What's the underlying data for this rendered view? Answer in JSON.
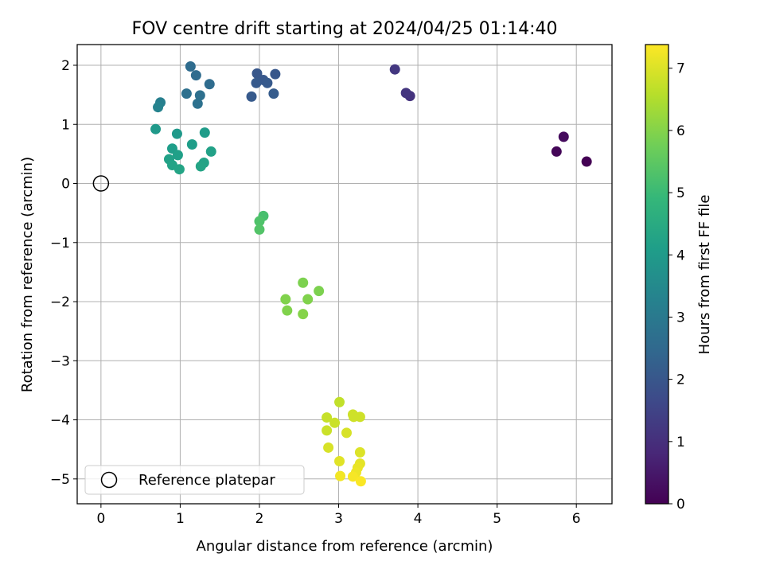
{
  "chart_data": {
    "type": "scatter",
    "title": "FOV centre drift starting at 2024/04/25 01:14:40",
    "xlabel": "Angular distance from reference (arcmin)",
    "ylabel": "Rotation from reference (arcmin)",
    "xlim": [
      -0.3,
      6.45
    ],
    "ylim": [
      -5.42,
      2.35
    ],
    "xticks": [
      0,
      1,
      2,
      3,
      4,
      5,
      6
    ],
    "yticks": [
      -5,
      -4,
      -3,
      -2,
      -1,
      0,
      1,
      2
    ],
    "xtick_labels": [
      "0",
      "1",
      "2",
      "3",
      "4",
      "5",
      "6"
    ],
    "ytick_labels": [
      "−5",
      "−4",
      "−3",
      "−2",
      "−1",
      "0",
      "1",
      "2"
    ],
    "grid": true,
    "legend": {
      "placement": "lower-left",
      "entries": [
        {
          "label": "Reference platepar",
          "marker": "open-circle"
        }
      ]
    },
    "reference_point": {
      "x": 0,
      "y": 0
    },
    "colorbar": {
      "label": "Hours from first FF file",
      "range": [
        0,
        7.38
      ],
      "ticks": [
        0,
        1,
        2,
        3,
        4,
        5,
        6,
        7
      ],
      "tick_labels": [
        "0",
        "1",
        "2",
        "3",
        "4",
        "5",
        "6",
        "7"
      ],
      "colormap": "viridis",
      "colormap_stops": [
        "#440154",
        "#482878",
        "#3e4989",
        "#31688e",
        "#26828e",
        "#1f9e89",
        "#35b779",
        "#6ece58",
        "#b5de2b",
        "#fde725"
      ]
    },
    "points": [
      {
        "x": 6.13,
        "y": 0.37,
        "hours": 0.0
      },
      {
        "x": 5.75,
        "y": 0.54,
        "hours": 0.1
      },
      {
        "x": 5.84,
        "y": 0.79,
        "hours": 0.2
      },
      {
        "x": 3.9,
        "y": 1.48,
        "hours": 1.1
      },
      {
        "x": 3.85,
        "y": 1.53,
        "hours": 1.15
      },
      {
        "x": 3.71,
        "y": 1.93,
        "hours": 1.2
      },
      {
        "x": 1.97,
        "y": 1.86,
        "hours": 2.0
      },
      {
        "x": 2.2,
        "y": 1.85,
        "hours": 2.0
      },
      {
        "x": 2.05,
        "y": 1.75,
        "hours": 2.05
      },
      {
        "x": 1.96,
        "y": 1.7,
        "hours": 2.1
      },
      {
        "x": 2.1,
        "y": 1.7,
        "hours": 2.1
      },
      {
        "x": 1.9,
        "y": 1.47,
        "hours": 2.1
      },
      {
        "x": 2.18,
        "y": 1.52,
        "hours": 2.15
      },
      {
        "x": 1.13,
        "y": 1.98,
        "hours": 2.6
      },
      {
        "x": 1.2,
        "y": 1.83,
        "hours": 2.6
      },
      {
        "x": 1.37,
        "y": 1.68,
        "hours": 2.6
      },
      {
        "x": 1.08,
        "y": 1.52,
        "hours": 2.7
      },
      {
        "x": 1.25,
        "y": 1.49,
        "hours": 2.7
      },
      {
        "x": 1.22,
        "y": 1.35,
        "hours": 2.75
      },
      {
        "x": 0.75,
        "y": 1.37,
        "hours": 3.2
      },
      {
        "x": 0.72,
        "y": 1.29,
        "hours": 3.3
      },
      {
        "x": 0.69,
        "y": 0.92,
        "hours": 3.95
      },
      {
        "x": 0.96,
        "y": 0.84,
        "hours": 3.95
      },
      {
        "x": 1.31,
        "y": 0.86,
        "hours": 4.05
      },
      {
        "x": 1.15,
        "y": 0.66,
        "hours": 4.1
      },
      {
        "x": 0.9,
        "y": 0.59,
        "hours": 4.1
      },
      {
        "x": 1.39,
        "y": 0.54,
        "hours": 4.2
      },
      {
        "x": 0.97,
        "y": 0.48,
        "hours": 4.15
      },
      {
        "x": 0.86,
        "y": 0.41,
        "hours": 4.2
      },
      {
        "x": 0.9,
        "y": 0.31,
        "hours": 4.25
      },
      {
        "x": 1.3,
        "y": 0.35,
        "hours": 4.25
      },
      {
        "x": 1.26,
        "y": 0.29,
        "hours": 4.3
      },
      {
        "x": 0.99,
        "y": 0.24,
        "hours": 4.3
      },
      {
        "x": 2.05,
        "y": -0.55,
        "hours": 5.2
      },
      {
        "x": 2.0,
        "y": -0.64,
        "hours": 5.3
      },
      {
        "x": 2.0,
        "y": -0.78,
        "hours": 5.35
      },
      {
        "x": 2.55,
        "y": -1.68,
        "hours": 5.9
      },
      {
        "x": 2.75,
        "y": -1.82,
        "hours": 5.9
      },
      {
        "x": 2.33,
        "y": -1.96,
        "hours": 5.95
      },
      {
        "x": 2.61,
        "y": -1.96,
        "hours": 5.95
      },
      {
        "x": 2.35,
        "y": -2.15,
        "hours": 5.95
      },
      {
        "x": 2.55,
        "y": -2.21,
        "hours": 6.0
      },
      {
        "x": 3.01,
        "y": -3.7,
        "hours": 6.7
      },
      {
        "x": 2.85,
        "y": -3.96,
        "hours": 6.75
      },
      {
        "x": 3.18,
        "y": -3.91,
        "hours": 6.85
      },
      {
        "x": 3.27,
        "y": -3.95,
        "hours": 6.85
      },
      {
        "x": 3.19,
        "y": -3.95,
        "hours": 6.85
      },
      {
        "x": 2.95,
        "y": -4.05,
        "hours": 6.8
      },
      {
        "x": 2.85,
        "y": -4.18,
        "hours": 6.8
      },
      {
        "x": 3.1,
        "y": -4.22,
        "hours": 6.95
      },
      {
        "x": 2.87,
        "y": -4.47,
        "hours": 6.95
      },
      {
        "x": 3.27,
        "y": -4.55,
        "hours": 7.0
      },
      {
        "x": 3.01,
        "y": -4.7,
        "hours": 7.05
      },
      {
        "x": 3.27,
        "y": -4.74,
        "hours": 7.1
      },
      {
        "x": 3.24,
        "y": -4.81,
        "hours": 7.15
      },
      {
        "x": 3.22,
        "y": -4.89,
        "hours": 7.2
      },
      {
        "x": 3.02,
        "y": -4.95,
        "hours": 7.25
      },
      {
        "x": 3.18,
        "y": -4.96,
        "hours": 7.3
      },
      {
        "x": 3.28,
        "y": -5.04,
        "hours": 7.35
      }
    ]
  }
}
